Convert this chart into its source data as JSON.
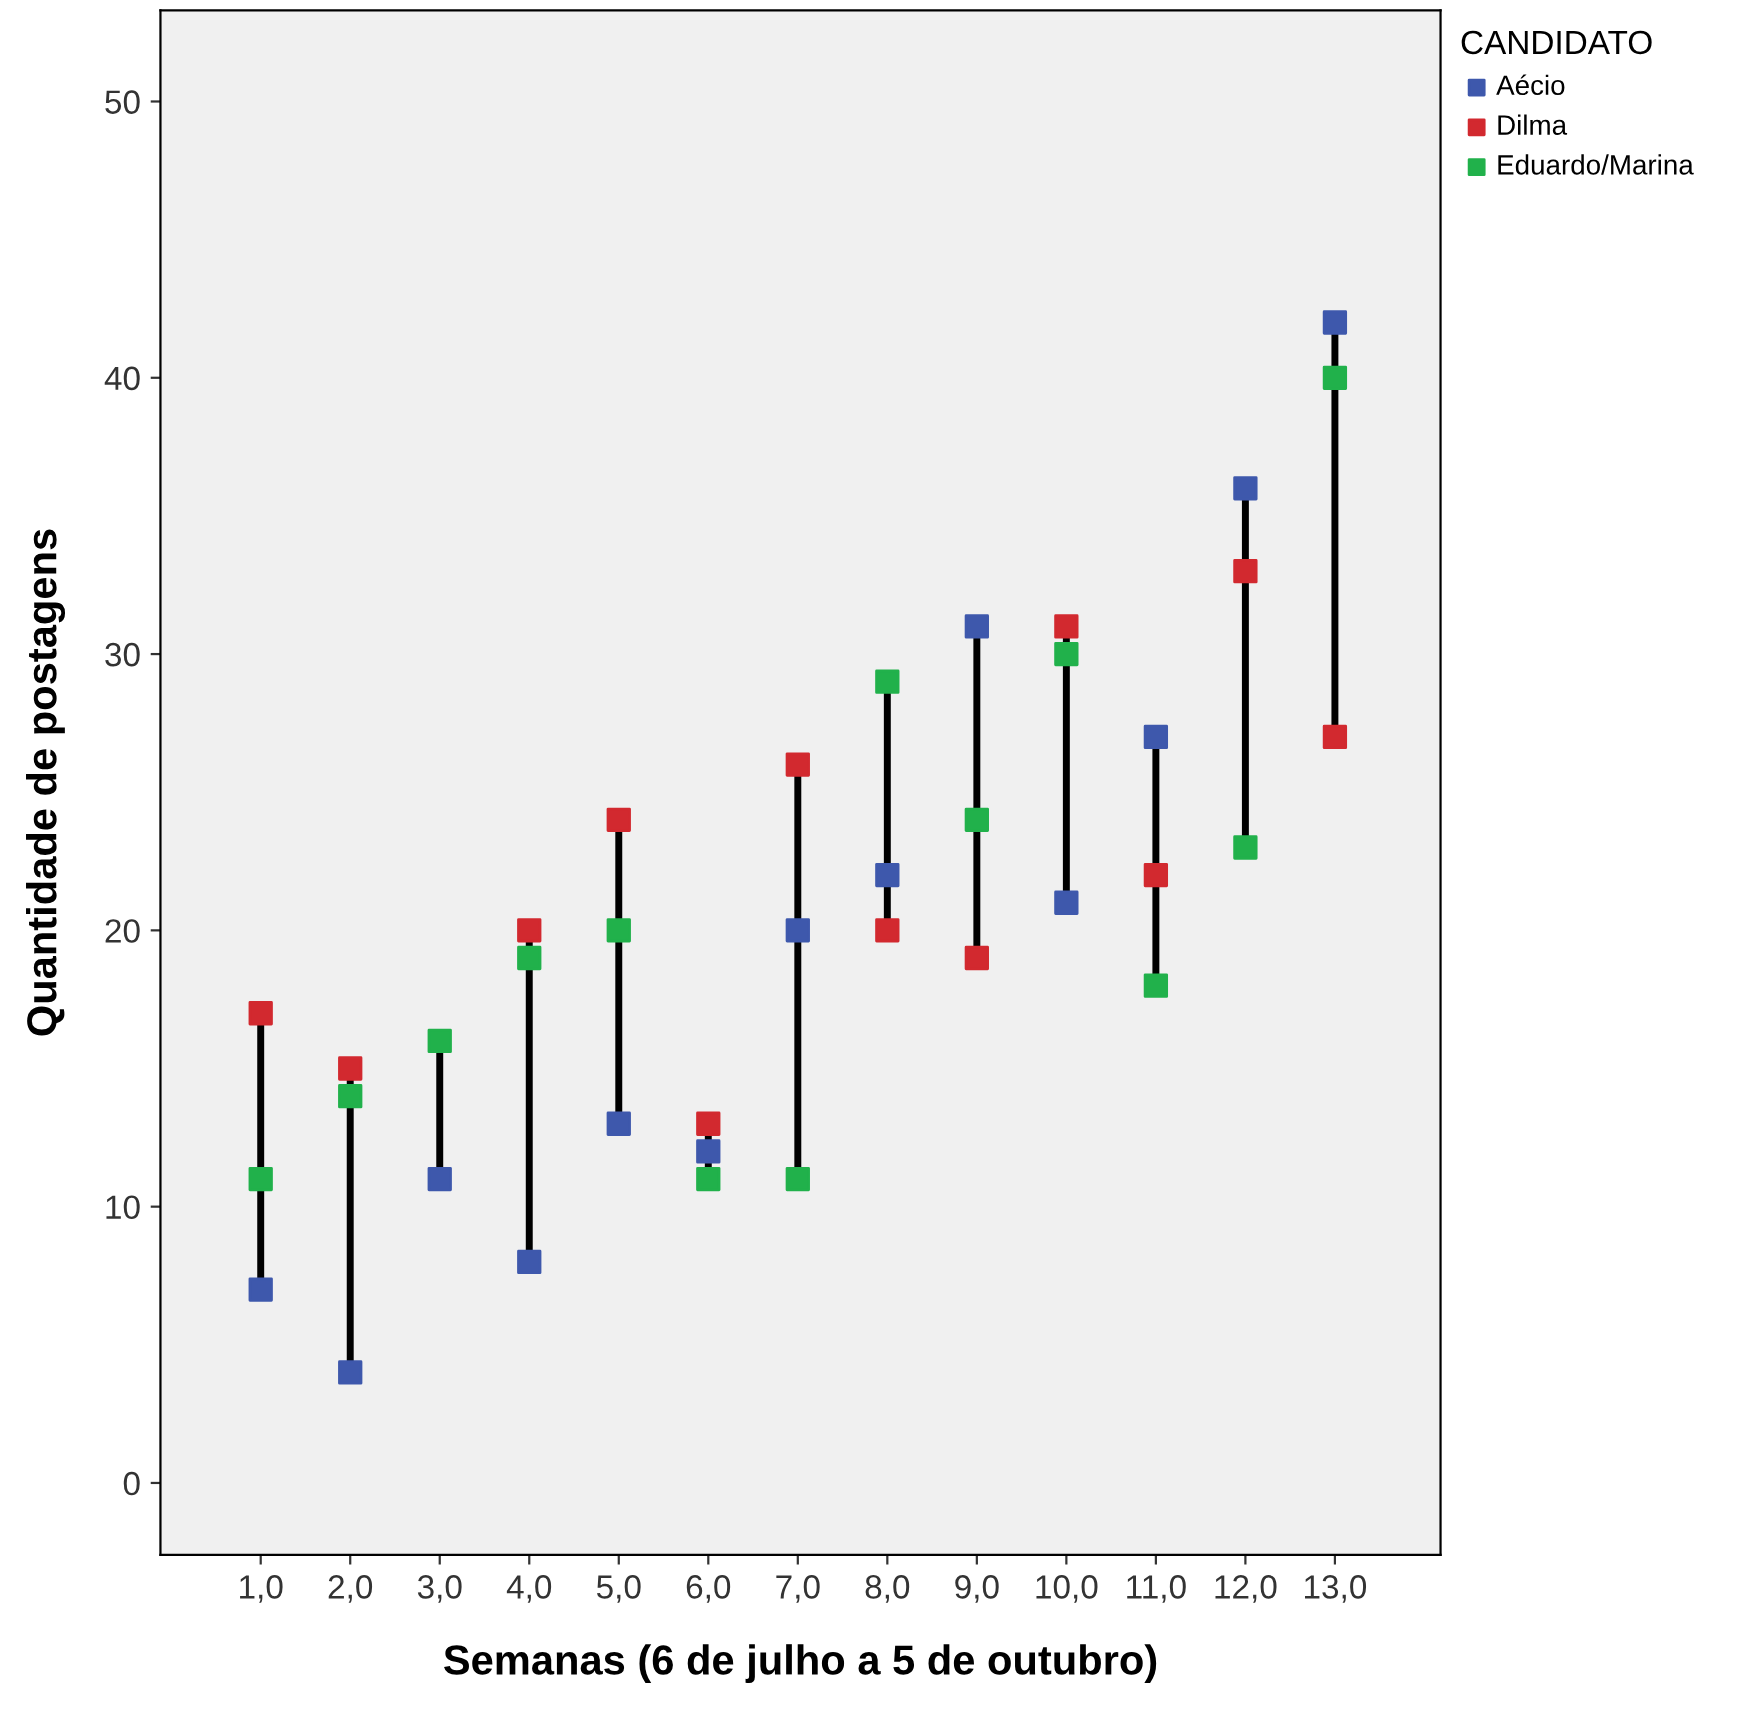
{
  "chart_data": {
    "type": "scatter",
    "xlabel": "Semanas (6 de julho a 5 de outubro)",
    "ylabel": "Quantidade de postagens",
    "legend_title": "CANDIDATO",
    "legend": "top right",
    "marker": "square",
    "grid": false,
    "categories": [
      "1,0",
      "2,0",
      "3,0",
      "4,0",
      "5,0",
      "6,0",
      "7,0",
      "8,0",
      "9,0",
      "10,0",
      "11,0",
      "12,0",
      "13,0"
    ],
    "ylim": [
      -2.6,
      53.3
    ],
    "yticks": [
      0,
      10,
      20,
      30,
      40,
      50
    ],
    "series": [
      {
        "name": "Aécio",
        "color": "#3e58ac",
        "values": [
          7,
          4,
          11,
          8,
          13,
          12,
          20,
          22,
          31,
          21,
          27,
          36,
          42
        ]
      },
      {
        "name": "Dilma",
        "color": "#d2292f",
        "values": [
          17,
          15,
          null,
          20,
          24,
          13,
          26,
          20,
          19,
          31,
          22,
          33,
          27
        ]
      },
      {
        "name": "Eduardo/Marina",
        "color": "#21b14b",
        "values": [
          11,
          14,
          16,
          19,
          20,
          11,
          11,
          29,
          24,
          30,
          18,
          23,
          40
        ]
      }
    ]
  }
}
